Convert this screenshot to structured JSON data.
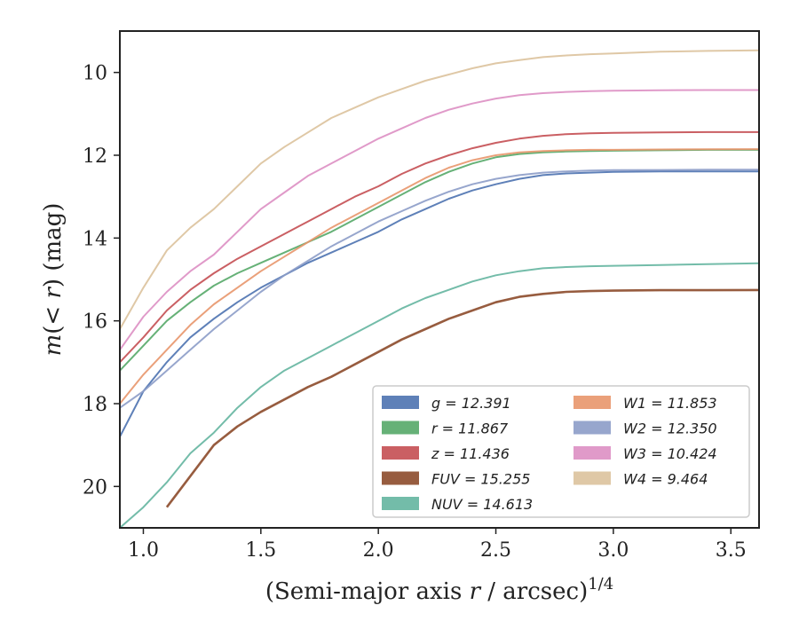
{
  "chart_data": {
    "type": "line",
    "xlabel": "(Semi-major axis r / arcsec)^1/4",
    "ylabel": "m(< r) (mag)",
    "xlim": [
      0.9,
      3.62
    ],
    "ylim": [
      21.0,
      9.0
    ],
    "y_inverted": true,
    "grid": false,
    "x_ticks": [
      1.0,
      1.5,
      2.0,
      2.5,
      3.0,
      3.5
    ],
    "x_tick_labels": [
      "1.0",
      "1.5",
      "2.0",
      "2.5",
      "3.0",
      "3.5"
    ],
    "y_ticks": [
      10,
      12,
      14,
      16,
      18,
      20
    ],
    "y_tick_labels": [
      "10",
      "12",
      "14",
      "16",
      "18",
      "20"
    ],
    "legend_position": "lower-right",
    "series": [
      {
        "name": "g = 12.391",
        "color": "#4c72b0",
        "x": [
          0.9,
          1.0,
          1.1,
          1.2,
          1.3,
          1.4,
          1.5,
          1.6,
          1.7,
          1.8,
          1.9,
          2.0,
          2.1,
          2.2,
          2.3,
          2.4,
          2.5,
          2.6,
          2.7,
          2.8,
          2.9,
          3.0,
          3.2,
          3.4,
          3.62
        ],
        "values": [
          18.8,
          17.7,
          17.0,
          16.4,
          15.95,
          15.55,
          15.2,
          14.9,
          14.6,
          14.35,
          14.1,
          13.85,
          13.55,
          13.3,
          13.05,
          12.85,
          12.7,
          12.57,
          12.48,
          12.44,
          12.42,
          12.4,
          12.39,
          12.39,
          12.39
        ]
      },
      {
        "name": "r = 11.867",
        "color": "#55a868",
        "x": [
          0.9,
          1.0,
          1.1,
          1.2,
          1.3,
          1.4,
          1.5,
          1.6,
          1.7,
          1.8,
          1.9,
          2.0,
          2.1,
          2.2,
          2.3,
          2.4,
          2.5,
          2.6,
          2.7,
          2.8,
          2.9,
          3.0,
          3.2,
          3.4,
          3.62
        ],
        "values": [
          17.2,
          16.6,
          16.0,
          15.55,
          15.15,
          14.85,
          14.6,
          14.35,
          14.1,
          13.85,
          13.55,
          13.25,
          12.95,
          12.65,
          12.4,
          12.2,
          12.05,
          11.97,
          11.93,
          11.91,
          11.9,
          11.89,
          11.88,
          11.87,
          11.87
        ]
      },
      {
        "name": "z = 11.436",
        "color": "#c44e52",
        "x": [
          0.9,
          1.0,
          1.1,
          1.2,
          1.3,
          1.4,
          1.5,
          1.6,
          1.7,
          1.8,
          1.9,
          2.0,
          2.1,
          2.2,
          2.3,
          2.4,
          2.5,
          2.6,
          2.7,
          2.8,
          2.9,
          3.0,
          3.2,
          3.4,
          3.62
        ],
        "values": [
          17.0,
          16.4,
          15.75,
          15.25,
          14.85,
          14.5,
          14.2,
          13.9,
          13.6,
          13.3,
          13.0,
          12.75,
          12.45,
          12.2,
          12.0,
          11.83,
          11.7,
          11.6,
          11.53,
          11.49,
          11.47,
          11.46,
          11.45,
          11.44,
          11.44
        ]
      },
      {
        "name": "FUV = 15.255",
        "color": "#8c4a2a",
        "x": [
          1.1,
          1.2,
          1.3,
          1.4,
          1.5,
          1.6,
          1.7,
          1.8,
          1.9,
          2.0,
          2.1,
          2.2,
          2.3,
          2.4,
          2.5,
          2.6,
          2.7,
          2.8,
          2.9,
          3.0,
          3.2,
          3.4,
          3.62
        ],
        "values": [
          20.5,
          19.75,
          19.0,
          18.55,
          18.2,
          17.9,
          17.6,
          17.35,
          17.05,
          16.75,
          16.45,
          16.2,
          15.95,
          15.75,
          15.55,
          15.42,
          15.35,
          15.3,
          15.28,
          15.27,
          15.26,
          15.26,
          15.255
        ]
      },
      {
        "name": "NUV = 14.613",
        "color": "#64b5a0",
        "x": [
          0.9,
          1.0,
          1.1,
          1.2,
          1.3,
          1.4,
          1.5,
          1.6,
          1.7,
          1.8,
          1.9,
          2.0,
          2.1,
          2.2,
          2.3,
          2.4,
          2.5,
          2.6,
          2.7,
          2.8,
          2.9,
          3.0,
          3.2,
          3.4,
          3.62
        ],
        "values": [
          21.0,
          20.5,
          19.9,
          19.2,
          18.7,
          18.1,
          17.6,
          17.2,
          16.9,
          16.6,
          16.3,
          16.0,
          15.7,
          15.45,
          15.25,
          15.05,
          14.9,
          14.8,
          14.73,
          14.7,
          14.68,
          14.67,
          14.65,
          14.63,
          14.61
        ]
      },
      {
        "name": "W1 = 11.853",
        "color": "#e8966c",
        "x": [
          0.9,
          1.0,
          1.1,
          1.2,
          1.3,
          1.4,
          1.5,
          1.6,
          1.7,
          1.8,
          1.9,
          2.0,
          2.1,
          2.2,
          2.3,
          2.4,
          2.5,
          2.6,
          2.7,
          2.8,
          2.9,
          3.0,
          3.2,
          3.4,
          3.62
        ],
        "values": [
          18.0,
          17.3,
          16.7,
          16.1,
          15.6,
          15.2,
          14.8,
          14.45,
          14.1,
          13.75,
          13.45,
          13.15,
          12.85,
          12.55,
          12.3,
          12.12,
          12.0,
          11.93,
          11.9,
          11.88,
          11.87,
          11.87,
          11.86,
          11.855,
          11.853
        ]
      },
      {
        "name": "W2 = 12.350",
        "color": "#8c9cc8",
        "x": [
          0.9,
          1.0,
          1.1,
          1.2,
          1.3,
          1.4,
          1.5,
          1.6,
          1.7,
          1.8,
          1.9,
          2.0,
          2.1,
          2.2,
          2.3,
          2.4,
          2.5,
          2.6,
          2.7,
          2.8,
          2.9,
          3.0,
          3.2,
          3.4,
          3.62
        ],
        "values": [
          18.1,
          17.7,
          17.2,
          16.7,
          16.2,
          15.75,
          15.3,
          14.9,
          14.55,
          14.2,
          13.9,
          13.6,
          13.35,
          13.1,
          12.88,
          12.7,
          12.57,
          12.48,
          12.42,
          12.39,
          12.37,
          12.36,
          12.355,
          12.35,
          12.35
        ]
      },
      {
        "name": "W3 = 10.424",
        "color": "#dd8fc3",
        "x": [
          0.9,
          1.0,
          1.1,
          1.2,
          1.3,
          1.4,
          1.5,
          1.6,
          1.7,
          1.8,
          1.9,
          2.0,
          2.1,
          2.2,
          2.3,
          2.4,
          2.5,
          2.6,
          2.7,
          2.8,
          2.9,
          3.0,
          3.2,
          3.4,
          3.62
        ],
        "values": [
          16.7,
          15.9,
          15.3,
          14.8,
          14.4,
          13.85,
          13.3,
          12.9,
          12.5,
          12.2,
          11.9,
          11.6,
          11.35,
          11.1,
          10.9,
          10.75,
          10.63,
          10.55,
          10.5,
          10.47,
          10.45,
          10.44,
          10.43,
          10.425,
          10.424
        ]
      },
      {
        "name": "W4 = 9.464",
        "color": "#dcc29c",
        "x": [
          0.9,
          1.0,
          1.1,
          1.2,
          1.3,
          1.4,
          1.5,
          1.6,
          1.7,
          1.8,
          1.9,
          2.0,
          2.1,
          2.2,
          2.3,
          2.4,
          2.5,
          2.6,
          2.7,
          2.8,
          2.9,
          3.0,
          3.2,
          3.4,
          3.62
        ],
        "values": [
          16.2,
          15.2,
          14.3,
          13.75,
          13.3,
          12.75,
          12.2,
          11.8,
          11.45,
          11.1,
          10.85,
          10.6,
          10.4,
          10.2,
          10.05,
          9.9,
          9.78,
          9.7,
          9.63,
          9.59,
          9.56,
          9.54,
          9.5,
          9.48,
          9.464
        ]
      }
    ]
  }
}
